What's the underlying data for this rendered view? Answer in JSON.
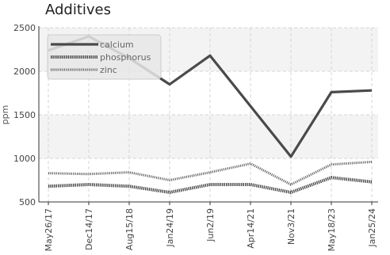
{
  "chart_data": {
    "type": "line",
    "title": "Additives",
    "xlabel": "",
    "ylabel": "ppm",
    "categories": [
      "May26/17",
      "Dec14/17",
      "Aug15/18",
      "Jan24/19",
      "Jun2/19",
      "Apr14/21",
      "Nov3/21",
      "May18/23",
      "Jan25/24"
    ],
    "ylim": [
      500,
      2500
    ],
    "yticks": [
      500,
      1000,
      1500,
      2000,
      2500
    ],
    "grid": true,
    "legend_position": "top-left",
    "series": [
      {
        "name": "calcium",
        "style": "solid",
        "color": "#4a4a4a",
        "values": [
          2240,
          2400,
          2150,
          1850,
          2180,
          1600,
          1020,
          1760,
          1780
        ]
      },
      {
        "name": "phosphorus",
        "style": "dotted",
        "color": "#4a4a4a",
        "values": [
          680,
          700,
          680,
          610,
          700,
          700,
          610,
          780,
          730
        ]
      },
      {
        "name": "zinc",
        "style": "dotted",
        "color": "#6a6a6a",
        "values": [
          830,
          820,
          840,
          750,
          840,
          940,
          700,
          930,
          960
        ]
      }
    ]
  }
}
